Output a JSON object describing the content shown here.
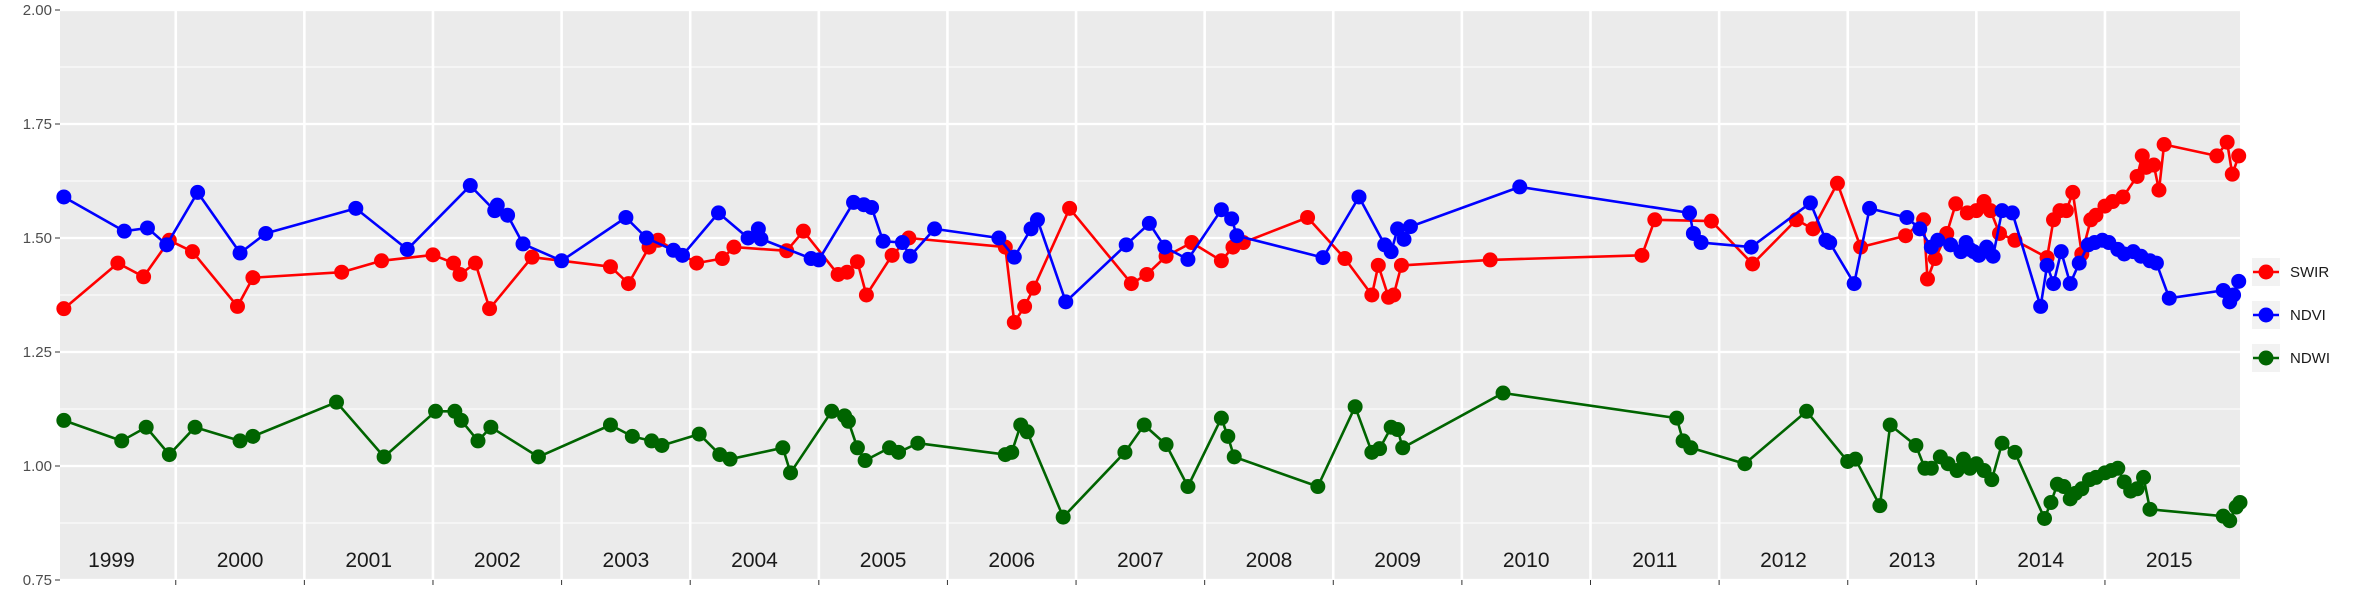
{
  "chart_data": {
    "type": "line",
    "title": "",
    "xlabel": "",
    "ylabel": "",
    "ylim": [
      0.75,
      2.0
    ],
    "y_ticks": [
      "0.75",
      "1.00",
      "1.25",
      "1.50",
      "1.75",
      "2.00"
    ],
    "x_range": [
      1998.6,
      2015.55
    ],
    "year_labels": [
      "1999",
      "2000",
      "2001",
      "2002",
      "2003",
      "2004",
      "2005",
      "2006",
      "2007",
      "2008",
      "2009",
      "2010",
      "2011",
      "2012",
      "2013",
      "2014",
      "2015"
    ],
    "year_label_positions": [
      1999.0,
      2000.0,
      2001.0,
      2002.0,
      2003.0,
      2004.0,
      2005.0,
      2006.0,
      2007.0,
      2008.0,
      2009.0,
      2010.0,
      2011.0,
      2012.0,
      2013.0,
      2014.0,
      2015.0
    ],
    "year_boundaries": [
      1999.5,
      2000.5,
      2001.5,
      2002.5,
      2003.5,
      2004.5,
      2005.5,
      2006.5,
      2007.5,
      2008.5,
      2009.5,
      2010.5,
      2011.5,
      2012.5,
      2013.5,
      2014.5
    ],
    "grid": true,
    "legend_position": "right",
    "colors": {
      "panel": "#ebebeb",
      "grid": "#ffffff",
      "axis_text": "#4d4d4d"
    },
    "series": [
      {
        "name": "SWIR",
        "color": "#ff0000",
        "points": [
          [
            1998.63,
            1.345
          ],
          [
            1999.05,
            1.445
          ],
          [
            1999.25,
            1.415
          ],
          [
            1999.45,
            1.495
          ],
          [
            1999.63,
            1.47
          ],
          [
            1999.98,
            1.35
          ],
          [
            2000.1,
            1.413
          ],
          [
            2000.79,
            1.425
          ],
          [
            2001.1,
            1.45
          ],
          [
            2001.5,
            1.463
          ],
          [
            2001.66,
            1.445
          ],
          [
            2001.71,
            1.42
          ],
          [
            2001.83,
            1.445
          ],
          [
            2001.94,
            1.345
          ],
          [
            2002.27,
            1.458
          ],
          [
            2002.88,
            1.437
          ],
          [
            2003.02,
            1.4
          ],
          [
            2003.18,
            1.48
          ],
          [
            2003.25,
            1.495
          ],
          [
            2003.55,
            1.445
          ],
          [
            2003.75,
            1.455
          ],
          [
            2003.84,
            1.48
          ],
          [
            2004.25,
            1.472
          ],
          [
            2004.38,
            1.515
          ],
          [
            2004.65,
            1.42
          ],
          [
            2004.72,
            1.425
          ],
          [
            2004.8,
            1.448
          ],
          [
            2004.87,
            1.375
          ],
          [
            2005.07,
            1.462
          ],
          [
            2005.2,
            1.5
          ],
          [
            2005.95,
            1.48
          ],
          [
            2006.02,
            1.315
          ],
          [
            2006.1,
            1.35
          ],
          [
            2006.17,
            1.39
          ],
          [
            2006.45,
            1.565
          ],
          [
            2006.93,
            1.4
          ],
          [
            2007.05,
            1.42
          ],
          [
            2007.2,
            1.46
          ],
          [
            2007.4,
            1.49
          ],
          [
            2007.63,
            1.45
          ],
          [
            2007.72,
            1.48
          ],
          [
            2007.8,
            1.49
          ],
          [
            2008.3,
            1.545
          ],
          [
            2008.59,
            1.455
          ],
          [
            2008.8,
            1.375
          ],
          [
            2008.85,
            1.44
          ],
          [
            2008.93,
            1.37
          ],
          [
            2008.97,
            1.375
          ],
          [
            2009.03,
            1.44
          ],
          [
            2009.72,
            1.452
          ],
          [
            2010.9,
            1.462
          ],
          [
            2011.0,
            1.54
          ],
          [
            2011.44,
            1.537
          ],
          [
            2011.76,
            1.443
          ],
          [
            2012.1,
            1.54
          ],
          [
            2012.23,
            1.52
          ],
          [
            2012.42,
            1.62
          ],
          [
            2012.6,
            1.48
          ],
          [
            2012.95,
            1.505
          ],
          [
            2013.09,
            1.54
          ],
          [
            2013.12,
            1.41
          ],
          [
            2013.18,
            1.455
          ],
          [
            2013.27,
            1.51
          ],
          [
            2013.34,
            1.575
          ],
          [
            2013.43,
            1.555
          ],
          [
            2013.5,
            1.56
          ],
          [
            2013.56,
            1.58
          ],
          [
            2013.61,
            1.56
          ],
          [
            2013.68,
            1.51
          ],
          [
            2013.8,
            1.495
          ],
          [
            2014.05,
            1.457
          ],
          [
            2014.1,
            1.54
          ],
          [
            2014.15,
            1.56
          ],
          [
            2014.2,
            1.56
          ],
          [
            2014.25,
            1.6
          ],
          [
            2014.32,
            1.465
          ],
          [
            2014.39,
            1.54
          ],
          [
            2014.43,
            1.55
          ],
          [
            2014.5,
            1.57
          ],
          [
            2014.56,
            1.58
          ],
          [
            2014.64,
            1.59
          ],
          [
            2014.75,
            1.635
          ],
          [
            2014.79,
            1.68
          ],
          [
            2014.82,
            1.655
          ],
          [
            2014.88,
            1.66
          ],
          [
            2014.92,
            1.605
          ],
          [
            2014.96,
            1.705
          ],
          [
            2015.37,
            1.68
          ],
          [
            2015.45,
            1.71
          ],
          [
            2015.49,
            1.64
          ],
          [
            2015.54,
            1.68
          ]
        ]
      },
      {
        "name": "NDVI",
        "color": "#0000ff",
        "points": [
          [
            1998.63,
            1.59
          ],
          [
            1999.1,
            1.515
          ],
          [
            1999.28,
            1.522
          ],
          [
            1999.43,
            1.485
          ],
          [
            1999.67,
            1.6
          ],
          [
            2000.0,
            1.467
          ],
          [
            2000.2,
            1.51
          ],
          [
            2000.9,
            1.565
          ],
          [
            2001.3,
            1.475
          ],
          [
            2001.79,
            1.615
          ],
          [
            2001.98,
            1.56
          ],
          [
            2002.0,
            1.572
          ],
          [
            2002.08,
            1.55
          ],
          [
            2002.2,
            1.487
          ],
          [
            2002.5,
            1.45
          ],
          [
            2003.0,
            1.545
          ],
          [
            2003.16,
            1.5
          ],
          [
            2003.37,
            1.473
          ],
          [
            2003.44,
            1.462
          ],
          [
            2003.72,
            1.555
          ],
          [
            2003.95,
            1.5
          ],
          [
            2004.03,
            1.52
          ],
          [
            2004.05,
            1.498
          ],
          [
            2004.44,
            1.455
          ],
          [
            2004.5,
            1.452
          ],
          [
            2004.77,
            1.578
          ],
          [
            2004.85,
            1.573
          ],
          [
            2004.91,
            1.567
          ],
          [
            2005.0,
            1.493
          ],
          [
            2005.15,
            1.49
          ],
          [
            2005.21,
            1.46
          ],
          [
            2005.4,
            1.52
          ],
          [
            2005.9,
            1.5
          ],
          [
            2006.02,
            1.458
          ],
          [
            2006.15,
            1.52
          ],
          [
            2006.2,
            1.54
          ],
          [
            2006.42,
            1.36
          ],
          [
            2006.89,
            1.485
          ],
          [
            2007.07,
            1.532
          ],
          [
            2007.19,
            1.48
          ],
          [
            2007.37,
            1.453
          ],
          [
            2007.63,
            1.562
          ],
          [
            2007.71,
            1.542
          ],
          [
            2007.75,
            1.505
          ],
          [
            2008.42,
            1.457
          ],
          [
            2008.7,
            1.59
          ],
          [
            2008.9,
            1.485
          ],
          [
            2008.95,
            1.47
          ],
          [
            2009.0,
            1.52
          ],
          [
            2009.05,
            1.497
          ],
          [
            2009.1,
            1.525
          ],
          [
            2009.95,
            1.612
          ],
          [
            2011.27,
            1.555
          ],
          [
            2011.3,
            1.51
          ],
          [
            2011.36,
            1.49
          ],
          [
            2011.75,
            1.48
          ],
          [
            2012.21,
            1.577
          ],
          [
            2012.33,
            1.495
          ],
          [
            2012.36,
            1.49
          ],
          [
            2012.55,
            1.4
          ],
          [
            2012.67,
            1.565
          ],
          [
            2012.96,
            1.545
          ],
          [
            2013.06,
            1.52
          ],
          [
            2013.15,
            1.48
          ],
          [
            2013.2,
            1.495
          ],
          [
            2013.3,
            1.485
          ],
          [
            2013.38,
            1.47
          ],
          [
            2013.42,
            1.49
          ],
          [
            2013.45,
            1.475
          ],
          [
            2013.48,
            1.47
          ],
          [
            2013.52,
            1.462
          ],
          [
            2013.58,
            1.48
          ],
          [
            2013.63,
            1.46
          ],
          [
            2013.7,
            1.56
          ],
          [
            2013.78,
            1.555
          ],
          [
            2014.0,
            1.35
          ],
          [
            2014.05,
            1.44
          ],
          [
            2014.1,
            1.4
          ],
          [
            2014.16,
            1.47
          ],
          [
            2014.23,
            1.4
          ],
          [
            2014.3,
            1.445
          ],
          [
            2014.37,
            1.485
          ],
          [
            2014.42,
            1.49
          ],
          [
            2014.48,
            1.495
          ],
          [
            2014.53,
            1.49
          ],
          [
            2014.6,
            1.475
          ],
          [
            2014.65,
            1.465
          ],
          [
            2014.72,
            1.47
          ],
          [
            2014.78,
            1.46
          ],
          [
            2014.85,
            1.45
          ],
          [
            2014.9,
            1.445
          ],
          [
            2015.0,
            1.368
          ],
          [
            2015.42,
            1.385
          ],
          [
            2015.47,
            1.36
          ],
          [
            2015.5,
            1.375
          ],
          [
            2015.54,
            1.405
          ]
        ]
      },
      {
        "name": "NDWI",
        "color": "#006400",
        "points": [
          [
            1998.63,
            1.1
          ],
          [
            1999.08,
            1.055
          ],
          [
            1999.27,
            1.085
          ],
          [
            1999.45,
            1.025
          ],
          [
            1999.65,
            1.085
          ],
          [
            2000.0,
            1.055
          ],
          [
            2000.1,
            1.065
          ],
          [
            2000.75,
            1.14
          ],
          [
            2001.12,
            1.02
          ],
          [
            2001.52,
            1.12
          ],
          [
            2001.67,
            1.12
          ],
          [
            2001.72,
            1.1
          ],
          [
            2001.85,
            1.055
          ],
          [
            2001.95,
            1.085
          ],
          [
            2002.32,
            1.02
          ],
          [
            2002.88,
            1.09
          ],
          [
            2003.05,
            1.065
          ],
          [
            2003.2,
            1.055
          ],
          [
            2003.28,
            1.045
          ],
          [
            2003.57,
            1.07
          ],
          [
            2003.73,
            1.025
          ],
          [
            2003.81,
            1.015
          ],
          [
            2004.22,
            1.04
          ],
          [
            2004.28,
            0.985
          ],
          [
            2004.6,
            1.12
          ],
          [
            2004.7,
            1.11
          ],
          [
            2004.73,
            1.098
          ],
          [
            2004.8,
            1.04
          ],
          [
            2004.86,
            1.012
          ],
          [
            2005.05,
            1.04
          ],
          [
            2005.12,
            1.03
          ],
          [
            2005.27,
            1.05
          ],
          [
            2005.95,
            1.025
          ],
          [
            2006.0,
            1.03
          ],
          [
            2006.07,
            1.09
          ],
          [
            2006.12,
            1.075
          ],
          [
            2006.4,
            0.888
          ],
          [
            2006.88,
            1.03
          ],
          [
            2007.03,
            1.09
          ],
          [
            2007.2,
            1.047
          ],
          [
            2007.37,
            0.955
          ],
          [
            2007.63,
            1.105
          ],
          [
            2007.68,
            1.065
          ],
          [
            2007.73,
            1.02
          ],
          [
            2008.38,
            0.955
          ],
          [
            2008.67,
            1.13
          ],
          [
            2008.8,
            1.03
          ],
          [
            2008.86,
            1.038
          ],
          [
            2008.95,
            1.085
          ],
          [
            2009.0,
            1.08
          ],
          [
            2009.04,
            1.04
          ],
          [
            2009.82,
            1.16
          ],
          [
            2011.17,
            1.105
          ],
          [
            2011.22,
            1.055
          ],
          [
            2011.28,
            1.04
          ],
          [
            2011.7,
            1.005
          ],
          [
            2012.18,
            1.12
          ],
          [
            2012.5,
            1.01
          ],
          [
            2012.56,
            1.015
          ],
          [
            2012.75,
            0.913
          ],
          [
            2012.83,
            1.09
          ],
          [
            2013.03,
            1.045
          ],
          [
            2013.1,
            0.995
          ],
          [
            2013.15,
            0.995
          ],
          [
            2013.22,
            1.02
          ],
          [
            2013.28,
            1.005
          ],
          [
            2013.35,
            0.99
          ],
          [
            2013.4,
            1.015
          ],
          [
            2013.45,
            0.995
          ],
          [
            2013.5,
            1.005
          ],
          [
            2013.56,
            0.99
          ],
          [
            2013.62,
            0.97
          ],
          [
            2013.7,
            1.05
          ],
          [
            2013.8,
            1.03
          ],
          [
            2014.03,
            0.885
          ],
          [
            2014.08,
            0.92
          ],
          [
            2014.13,
            0.96
          ],
          [
            2014.18,
            0.955
          ],
          [
            2014.23,
            0.928
          ],
          [
            2014.27,
            0.94
          ],
          [
            2014.32,
            0.95
          ],
          [
            2014.38,
            0.97
          ],
          [
            2014.43,
            0.975
          ],
          [
            2014.5,
            0.985
          ],
          [
            2014.55,
            0.99
          ],
          [
            2014.6,
            0.995
          ],
          [
            2014.65,
            0.965
          ],
          [
            2014.7,
            0.945
          ],
          [
            2014.75,
            0.95
          ],
          [
            2014.8,
            0.975
          ],
          [
            2014.85,
            0.905
          ],
          [
            2015.42,
            0.89
          ],
          [
            2015.47,
            0.88
          ],
          [
            2015.52,
            0.91
          ],
          [
            2015.55,
            0.92
          ]
        ]
      }
    ]
  }
}
